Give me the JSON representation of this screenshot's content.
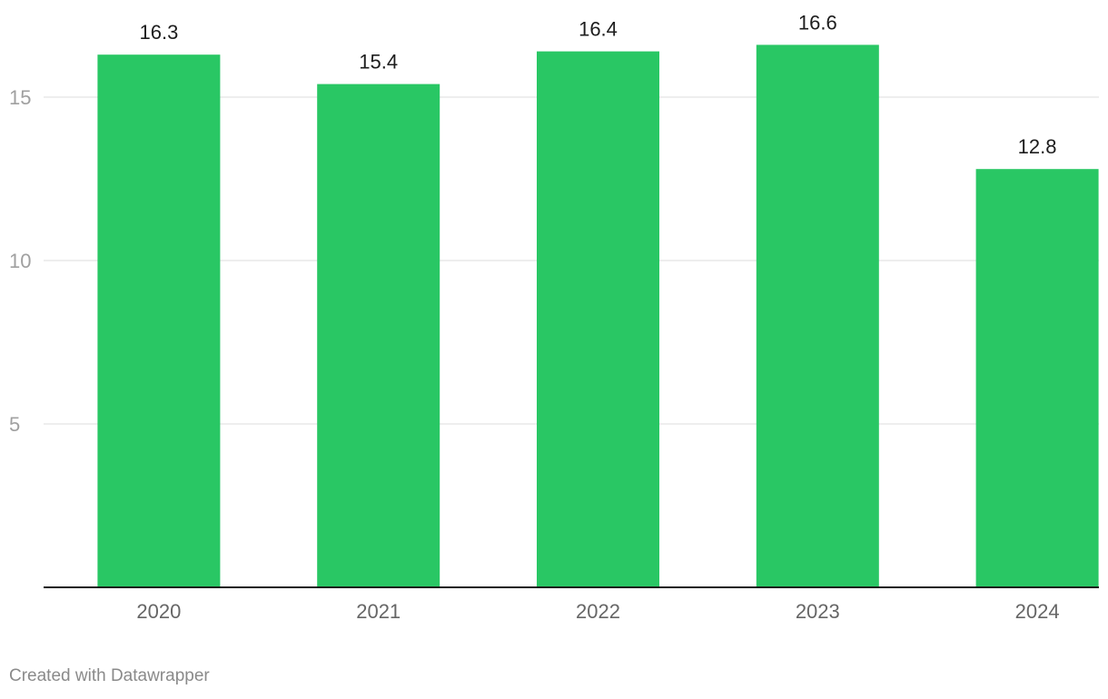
{
  "chart_data": {
    "type": "bar",
    "categories": [
      "2020",
      "2021",
      "2022",
      "2023",
      "2024"
    ],
    "values": [
      16.3,
      15.4,
      16.4,
      16.6,
      12.8
    ],
    "data_labels": [
      "16.3",
      "15.4",
      "16.4",
      "16.6",
      "12.8"
    ],
    "y_ticks": [
      5,
      10,
      15
    ],
    "ylim": [
      0,
      16.6
    ],
    "grid": true,
    "bar_color": "#29c764"
  },
  "footer": {
    "credit": "Created with Datawrapper"
  }
}
